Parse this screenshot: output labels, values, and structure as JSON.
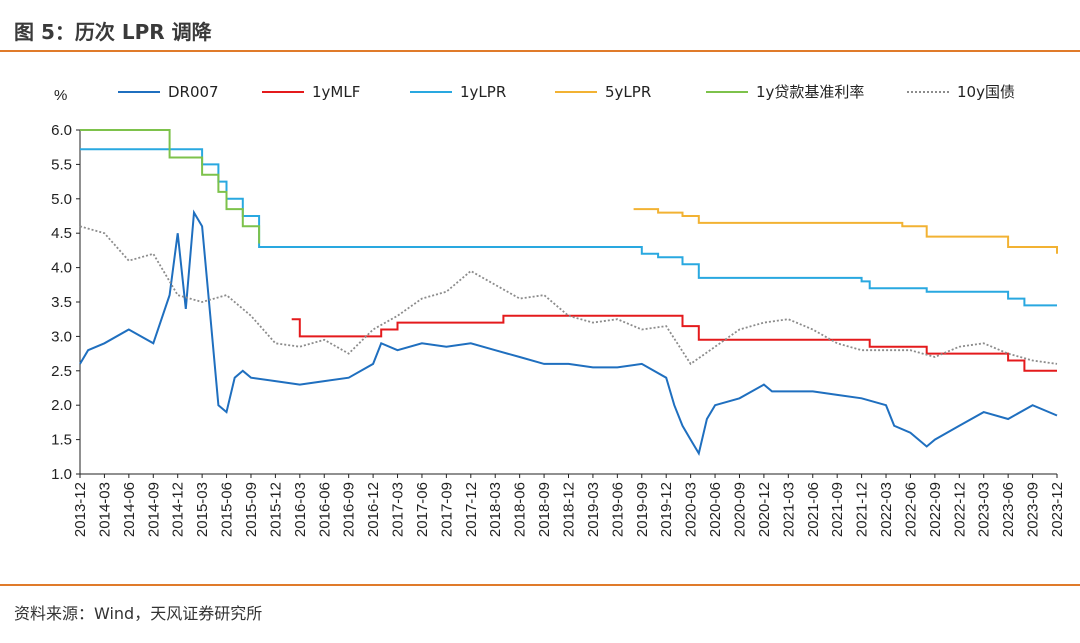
{
  "header": {
    "title": "图 5：历次 LPR 调降"
  },
  "footer": {
    "source": "资料来源：Wind，天风证券研究所"
  },
  "colors": {
    "accent_rule": "#e07b2a"
  },
  "chart_data": {
    "type": "line",
    "title": "",
    "ylabel": "%",
    "ylim": [
      1.0,
      6.0
    ],
    "yticks": [
      "6.0",
      "5.5",
      "5.0",
      "4.5",
      "4.0",
      "3.5",
      "3.0",
      "2.5",
      "2.0",
      "1.5",
      "1.0"
    ],
    "xlim": [
      "2013-12",
      "2023-12"
    ],
    "xticks": [
      "2013-12",
      "2014-03",
      "2014-06",
      "2014-09",
      "2014-12",
      "2015-03",
      "2015-06",
      "2015-09",
      "2015-12",
      "2016-03",
      "2016-06",
      "2016-09",
      "2016-12",
      "2017-03",
      "2017-06",
      "2017-09",
      "2017-12",
      "2018-03",
      "2018-06",
      "2018-09",
      "2018-12",
      "2019-03",
      "2019-06",
      "2019-09",
      "2019-12",
      "2020-03",
      "2020-06",
      "2020-09",
      "2020-12",
      "2021-03",
      "2021-06",
      "2021-09",
      "2021-12",
      "2022-03",
      "2022-06",
      "2022-09",
      "2022-12",
      "2023-03",
      "2023-06",
      "2023-09",
      "2023-12"
    ],
    "grid": false,
    "legend_position": "top",
    "series": [
      {
        "name": "DR007",
        "color": "#1f6fbf",
        "style": "solid",
        "x": [
          "2013-12",
          "2014-01",
          "2014-03",
          "2014-06",
          "2014-09",
          "2014-11",
          "2014-12",
          "2015-01",
          "2015-02",
          "2015-03",
          "2015-04",
          "2015-05",
          "2015-06",
          "2015-07",
          "2015-08",
          "2015-09",
          "2015-12",
          "2016-03",
          "2016-06",
          "2016-09",
          "2016-12",
          "2017-01",
          "2017-03",
          "2017-06",
          "2017-09",
          "2017-12",
          "2018-03",
          "2018-06",
          "2018-09",
          "2018-12",
          "2019-03",
          "2019-06",
          "2019-09",
          "2019-12",
          "2020-01",
          "2020-02",
          "2020-03",
          "2020-04",
          "2020-05",
          "2020-06",
          "2020-09",
          "2020-12",
          "2021-01",
          "2021-03",
          "2021-06",
          "2021-09",
          "2021-12",
          "2022-03",
          "2022-04",
          "2022-06",
          "2022-08",
          "2022-09",
          "2022-12",
          "2023-03",
          "2023-06",
          "2023-09",
          "2023-12"
        ],
        "values": [
          2.6,
          2.8,
          2.9,
          3.1,
          2.9,
          3.6,
          4.5,
          3.4,
          4.8,
          4.6,
          3.3,
          2.0,
          1.9,
          2.4,
          2.5,
          2.4,
          2.35,
          2.3,
          2.35,
          2.4,
          2.6,
          2.9,
          2.8,
          2.9,
          2.85,
          2.9,
          2.8,
          2.7,
          2.6,
          2.6,
          2.55,
          2.55,
          2.6,
          2.4,
          2.0,
          1.7,
          1.5,
          1.3,
          1.8,
          2.0,
          2.1,
          2.3,
          2.2,
          2.2,
          2.2,
          2.15,
          2.1,
          2.0,
          1.7,
          1.6,
          1.4,
          1.5,
          1.7,
          1.9,
          1.8,
          2.0,
          1.85
        ]
      },
      {
        "name": "1yMLF",
        "color": "#e41a1c",
        "style": "solid",
        "x": [
          "2016-02",
          "2016-03",
          "2016-12",
          "2017-01",
          "2017-02",
          "2017-03",
          "2017-12",
          "2018-04",
          "2019-11",
          "2020-02",
          "2020-04",
          "2022-01",
          "2022-08",
          "2023-06",
          "2023-08",
          "2023-12"
        ],
        "values": [
          3.25,
          3.0,
          3.0,
          3.1,
          3.1,
          3.2,
          3.2,
          3.3,
          3.3,
          3.15,
          2.95,
          2.85,
          2.75,
          2.65,
          2.5,
          2.5
        ]
      },
      {
        "name": "1yLPR",
        "color": "#29a8e0",
        "style": "solid",
        "x": [
          "2013-12",
          "2014-11",
          "2015-03",
          "2015-05",
          "2015-06",
          "2015-08",
          "2015-10",
          "2019-08",
          "2019-09",
          "2019-11",
          "2020-02",
          "2020-04",
          "2021-12",
          "2022-01",
          "2022-08",
          "2023-06",
          "2023-08",
          "2023-12"
        ],
        "values": [
          5.72,
          5.72,
          5.5,
          5.25,
          5.0,
          4.75,
          4.3,
          4.3,
          4.2,
          4.15,
          4.05,
          3.85,
          3.8,
          3.7,
          3.65,
          3.55,
          3.45,
          3.45
        ]
      },
      {
        "name": "5yLPR",
        "color": "#f2b233",
        "style": "solid",
        "x": [
          "2019-08",
          "2019-11",
          "2020-02",
          "2020-04",
          "2022-01",
          "2022-05",
          "2022-08",
          "2023-06",
          "2023-12"
        ],
        "values": [
          4.85,
          4.8,
          4.75,
          4.65,
          4.65,
          4.6,
          4.45,
          4.3,
          4.2
        ]
      },
      {
        "name": "1y贷款基准利率",
        "color": "#7dc24b",
        "style": "solid",
        "x": [
          "2013-12",
          "2014-11",
          "2015-03",
          "2015-05",
          "2015-06",
          "2015-08",
          "2015-10"
        ],
        "values": [
          6.0,
          5.6,
          5.35,
          5.1,
          4.85,
          4.6,
          4.35
        ]
      },
      {
        "name": "10y国债",
        "color": "#8c8c8c",
        "style": "dotted",
        "x": [
          "2013-12",
          "2014-03",
          "2014-06",
          "2014-09",
          "2014-12",
          "2015-03",
          "2015-06",
          "2015-09",
          "2015-12",
          "2016-03",
          "2016-06",
          "2016-09",
          "2016-12",
          "2017-03",
          "2017-06",
          "2017-09",
          "2017-12",
          "2018-03",
          "2018-06",
          "2018-09",
          "2018-12",
          "2019-03",
          "2019-06",
          "2019-09",
          "2019-12",
          "2020-03",
          "2020-06",
          "2020-09",
          "2020-12",
          "2021-03",
          "2021-06",
          "2021-09",
          "2021-12",
          "2022-03",
          "2022-06",
          "2022-09",
          "2022-12",
          "2023-03",
          "2023-06",
          "2023-09",
          "2023-12"
        ],
        "values": [
          4.6,
          4.5,
          4.1,
          4.2,
          3.6,
          3.5,
          3.6,
          3.3,
          2.9,
          2.85,
          2.95,
          2.75,
          3.1,
          3.3,
          3.55,
          3.65,
          3.95,
          3.75,
          3.55,
          3.6,
          3.3,
          3.2,
          3.25,
          3.1,
          3.15,
          2.6,
          2.85,
          3.1,
          3.2,
          3.25,
          3.1,
          2.9,
          2.8,
          2.8,
          2.8,
          2.7,
          2.85,
          2.9,
          2.75,
          2.65,
          2.6
        ]
      }
    ]
  }
}
